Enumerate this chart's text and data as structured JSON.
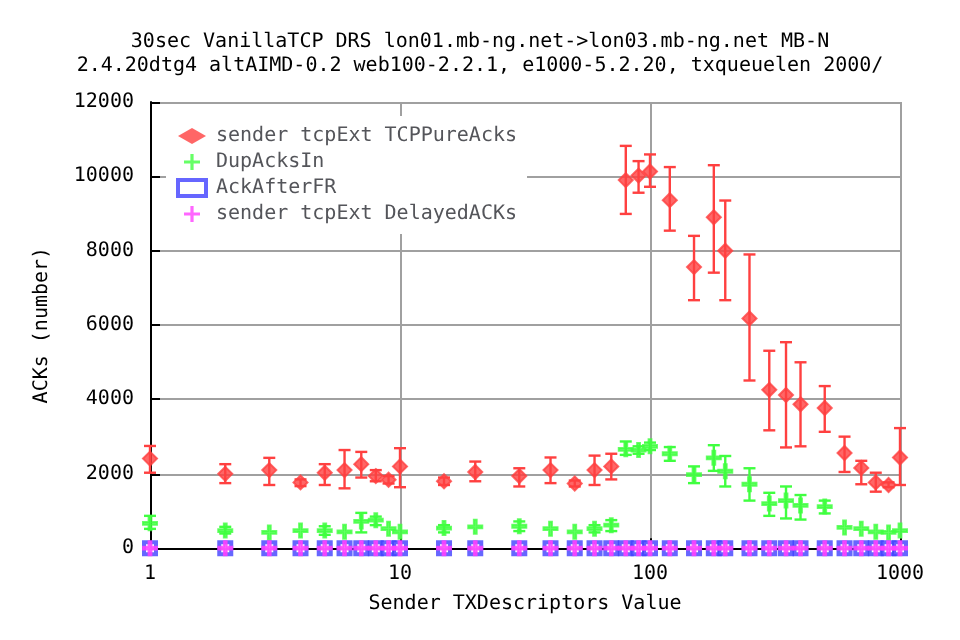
{
  "chart_data": {
    "type": "scatter",
    "title": "30sec VanillaTCP DRS lon01.mb-ng.net->lon03.mb-ng.net MB-N\n2.4.20dtg4 altAIMD-0.2 web100-2.2.1, e1000-5.2.20, txqueuelen 2000/",
    "xlabel": "Sender TXDescriptors Value",
    "ylabel": "ACKs (number)",
    "x": [
      1,
      2,
      3,
      4,
      5,
      6,
      7,
      8,
      9,
      10,
      15,
      20,
      30,
      40,
      50,
      60,
      70,
      80,
      90,
      100,
      120,
      150,
      180,
      200,
      250,
      300,
      350,
      400,
      500,
      600,
      700,
      800,
      900,
      1000
    ],
    "series": [
      {
        "name": "sender tcpExt TCPPureAcks",
        "color": "#ff4040",
        "marker": "diamond",
        "values": [
          2410,
          2000,
          2100,
          1770,
          2030,
          2100,
          2260,
          1940,
          1840,
          2200,
          1800,
          2050,
          1940,
          2100,
          1740,
          2100,
          2200,
          9900,
          10020,
          10130,
          9360,
          7560,
          8900,
          8000,
          6180,
          4260,
          4120,
          3870,
          3770,
          2560,
          2160,
          1770,
          1700,
          2440
        ],
        "errors": [
          [
            2030,
            2750
          ],
          [
            1750,
            2260
          ],
          [
            1700,
            2430
          ],
          [
            1670,
            1850
          ],
          [
            1700,
            2260
          ],
          [
            1610,
            2640
          ],
          [
            1900,
            2590
          ],
          [
            1800,
            2100
          ],
          [
            1740,
            1940
          ],
          [
            1640,
            2690
          ],
          [
            1700,
            1900
          ],
          [
            1800,
            2330
          ],
          [
            1660,
            2150
          ],
          [
            1750,
            2440
          ],
          [
            1660,
            1820
          ],
          [
            1700,
            2490
          ],
          [
            1850,
            2540
          ],
          [
            8990,
            10820
          ],
          [
            9560,
            10410
          ],
          [
            9720,
            10590
          ],
          [
            8540,
            10250
          ],
          [
            6670,
            8400
          ],
          [
            7410,
            10300
          ],
          [
            6670,
            9350
          ],
          [
            4510,
            7900
          ],
          [
            3170,
            5310
          ],
          [
            2710,
            5540
          ],
          [
            2740,
            5000
          ],
          [
            3130,
            4360
          ],
          [
            2050,
            3000
          ],
          [
            1720,
            2350
          ],
          [
            1520,
            2030
          ],
          [
            1640,
            1770
          ],
          [
            1700,
            3230
          ]
        ]
      },
      {
        "name": "DupAcksIn",
        "color": "#40ff40",
        "marker": "cross",
        "values": [
          670,
          475,
          425,
          475,
          475,
          440,
          720,
          755,
          525,
          440,
          540,
          575,
          590,
          525,
          440,
          525,
          620,
          2660,
          2640,
          2740,
          2540,
          1980,
          2430,
          2070,
          1720,
          1200,
          1280,
          1150,
          1120,
          560,
          525,
          440,
          425,
          475
        ],
        "errors": [
          [
            520,
            870
          ],
          [
            395,
            575
          ],
          null,
          null,
          [
            360,
            590
          ],
          null,
          [
            425,
            950
          ],
          [
            620,
            850
          ],
          null,
          null,
          [
            425,
            620
          ],
          null,
          [
            460,
            720
          ],
          null,
          null,
          [
            425,
            620
          ],
          [
            460,
            755
          ],
          [
            2510,
            2870
          ],
          [
            2540,
            2740
          ],
          [
            2640,
            2840
          ],
          [
            2350,
            2720
          ],
          [
            1750,
            2200
          ],
          [
            2080,
            2770
          ],
          [
            1660,
            2480
          ],
          [
            1280,
            2150
          ],
          [
            870,
            1490
          ],
          [
            800,
            1660
          ],
          [
            770,
            1430
          ],
          [
            935,
            1280
          ],
          null,
          null,
          null,
          null,
          null
        ]
      },
      {
        "name": "AckAfterFR",
        "color": "#4040ff",
        "marker": "square",
        "values": [
          0,
          0,
          0,
          0,
          0,
          0,
          0,
          0,
          0,
          0,
          0,
          0,
          0,
          0,
          0,
          0,
          0,
          0,
          0,
          0,
          0,
          0,
          0,
          0,
          0,
          0,
          0,
          0,
          0,
          0,
          0,
          0,
          0,
          0
        ]
      },
      {
        "name": "sender tcpExt DelayedACKs",
        "color": "#ff40ff",
        "marker": "cross",
        "values": [
          0,
          0,
          0,
          0,
          0,
          0,
          0,
          0,
          0,
          0,
          0,
          0,
          0,
          0,
          0,
          0,
          0,
          0,
          0,
          0,
          0,
          0,
          0,
          0,
          0,
          0,
          0,
          0,
          0,
          0,
          0,
          0,
          0,
          0
        ]
      }
    ],
    "log": "x",
    "xlim": [
      1,
      1000
    ],
    "xticks": [
      1,
      10,
      100,
      1000
    ],
    "ylim": [
      0,
      12000
    ],
    "yticks": [
      0,
      2000,
      4000,
      6000,
      8000,
      10000,
      12000
    ],
    "grid": true,
    "legend": "top left"
  }
}
